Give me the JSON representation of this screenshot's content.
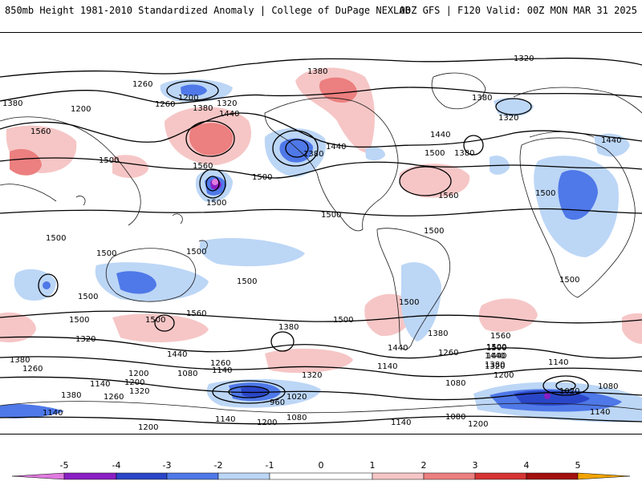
{
  "header": {
    "title_left": "850mb Height 1981-2010 Standardized Anomaly | College of DuPage NEXLAB",
    "title_right": "00Z GFS | F120 Valid: 00Z MON MAR 31 2025"
  },
  "colors": {
    "neg5": "#e07be0",
    "neg4": "#8a1fc4",
    "neg3": "#2a46c8",
    "neg2": "#4f78e8",
    "neg1": "#bcd6f6",
    "pos1": "#f6c6c6",
    "pos2": "#ec7f7f",
    "pos3": "#d63434",
    "pos4": "#a30f0f",
    "pos5": "#f2a400",
    "contour": "#000000",
    "coast": "#1a1a1a"
  },
  "colorbar": {
    "ticks": [
      "-5",
      "-4",
      "-3",
      "-2",
      "-1",
      "0",
      "1",
      "2",
      "3",
      "4",
      "5"
    ]
  },
  "contour_labels": {
    "l01": "1320",
    "l02": "1380",
    "l03": "1260",
    "l04": "1200",
    "l05": "1260",
    "l06": "1200",
    "l07": "1380",
    "l08": "1320",
    "l09": "1440",
    "l10": "1380",
    "l11": "1560",
    "l12": "1500",
    "l13": "1560",
    "l14": "1500",
    "l15": "1440",
    "l16": "1380",
    "l17": "1500",
    "l18": "1440",
    "l19": "1500",
    "l20": "1380",
    "l21": "1380",
    "l22": "1320",
    "l23": "1440",
    "l24": "1500",
    "l25": "1560",
    "l26": "1500",
    "l27": "1500",
    "l28": "1500",
    "l29": "1500",
    "l30": "1500",
    "l31": "1500",
    "l32": "1500",
    "l33": "1500",
    "l34": "1500",
    "l35": "1560",
    "l36": "1500",
    "l37": "1500",
    "l38": "1500",
    "l39": "1500",
    "l40": "1320",
    "l41": "1440",
    "l42": "1380",
    "l43": "1260",
    "l44": "1260",
    "l45": "1140",
    "l46": "1200",
    "l47": "1080",
    "l48": "1140",
    "l49": "1200",
    "l50": "1380",
    "l51": "1320",
    "l52": "1260",
    "l53": "1380",
    "l54": "1320",
    "l55": "960",
    "l56": "1020",
    "l57": "1080",
    "l58": "1200",
    "l59": "1140",
    "l60": "1140",
    "l61": "1440",
    "l62": "1380",
    "l63": "1260",
    "l64": "1440",
    "l65": "1380",
    "l66": "1320",
    "l67": "1200",
    "l68": "1560",
    "l69": "1500",
    "l70": "1440",
    "l71": "1140",
    "l72": "1080",
    "l73": "1020",
    "l74": "1080",
    "l75": "1140",
    "l76": "1200",
    "l77": "1140",
    "l78": "1080",
    "l79": "1200",
    "l80": "1140"
  }
}
